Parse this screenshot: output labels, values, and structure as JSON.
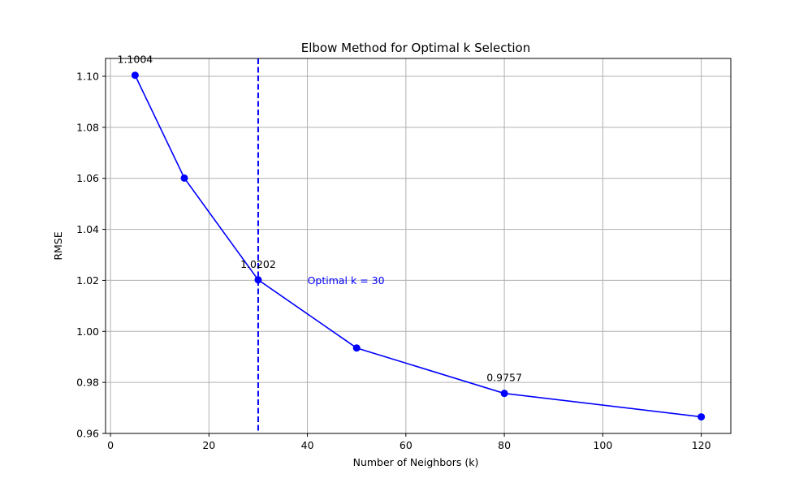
{
  "chart_data": {
    "type": "line",
    "title": "Elbow Method for Optimal k Selection",
    "xlabel": "Number of Neighbors (k)",
    "ylabel": "RMSE",
    "xlim": [
      -1,
      126
    ],
    "ylim": [
      0.96,
      1.107
    ],
    "xticks": [
      0,
      20,
      40,
      60,
      80,
      100,
      120
    ],
    "yticks": [
      0.96,
      0.98,
      1.0,
      1.02,
      1.04,
      1.06,
      1.08,
      1.1
    ],
    "ytick_labels": [
      "0.96",
      "0.98",
      "1.00",
      "1.02",
      "1.04",
      "1.06",
      "1.08",
      "1.10"
    ],
    "grid": true,
    "series": [
      {
        "color": "#0000ff",
        "x": [
          5,
          15,
          30,
          50,
          80,
          120
        ],
        "y": [
          1.1004,
          1.0601,
          1.0202,
          0.9935,
          0.9757,
          0.9665
        ]
      }
    ],
    "data_labels": [
      {
        "x": 5,
        "y": 1.1004,
        "text": "1.1004"
      },
      {
        "x": 30,
        "y": 1.0202,
        "text": "1.0202"
      },
      {
        "x": 80,
        "y": 0.9757,
        "text": "0.9757"
      }
    ],
    "vline": {
      "x": 30,
      "color": "#0000ff",
      "style": "dashed"
    },
    "annotation": {
      "text": "Optimal k = 30",
      "x": 40,
      "y": 1.02,
      "color": "#0000ff"
    }
  }
}
